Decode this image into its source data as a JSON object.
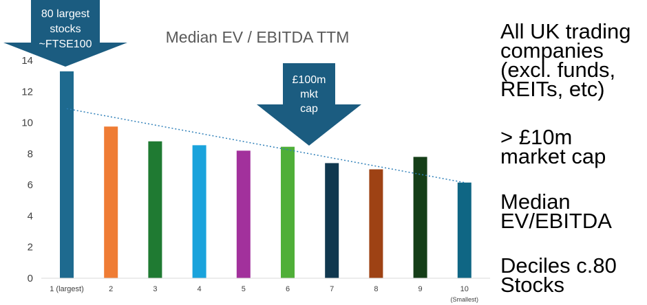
{
  "chart_data": {
    "type": "bar",
    "title": "Median EV / EBITDA TTM",
    "categories": [
      "1 (largest)",
      "2",
      "3",
      "4",
      "5",
      "6",
      "7",
      "8",
      "9",
      "10"
    ],
    "category_sublabel_last": "(Smallest)",
    "values": [
      13.3,
      9.75,
      8.8,
      8.55,
      8.2,
      8.45,
      7.4,
      7.0,
      7.8,
      6.15
    ],
    "colors": [
      "#1e6a8f",
      "#ef7c34",
      "#1f7a32",
      "#1aa3dc",
      "#a2319c",
      "#4faf38",
      "#10384f",
      "#9e4214",
      "#153e18",
      "#0f6684"
    ],
    "ylim": [
      0,
      14
    ],
    "yticks": [
      0,
      2,
      4,
      6,
      8,
      10,
      12,
      14
    ],
    "trendline": {
      "start": 10.9,
      "end": 6.15,
      "color": "#2e7fb8",
      "style": "dotted"
    },
    "annotations": [
      {
        "lines": [
          "80 largest",
          "stocks",
          "~FTSE100"
        ],
        "points_to": "1 (largest)"
      },
      {
        "lines": [
          "£100m",
          "mkt",
          "cap"
        ],
        "points_to": "6"
      }
    ],
    "xlabel": "",
    "ylabel": ""
  },
  "side_panel": [
    {
      "lines": [
        "All UK trading",
        "companies",
        "(excl. funds,",
        "REITs, etc)"
      ]
    },
    {
      "lines": [
        "> £10m",
        "market cap"
      ]
    },
    {
      "lines": [
        "Median",
        "EV/EBITDA"
      ]
    },
    {
      "lines": [
        "Deciles c.80",
        "Stocks"
      ]
    }
  ],
  "colors": {
    "arrow": "#1b5c80",
    "arrow_text": "#ffffff",
    "axis_text": "#404040",
    "title_text": "#595959"
  }
}
